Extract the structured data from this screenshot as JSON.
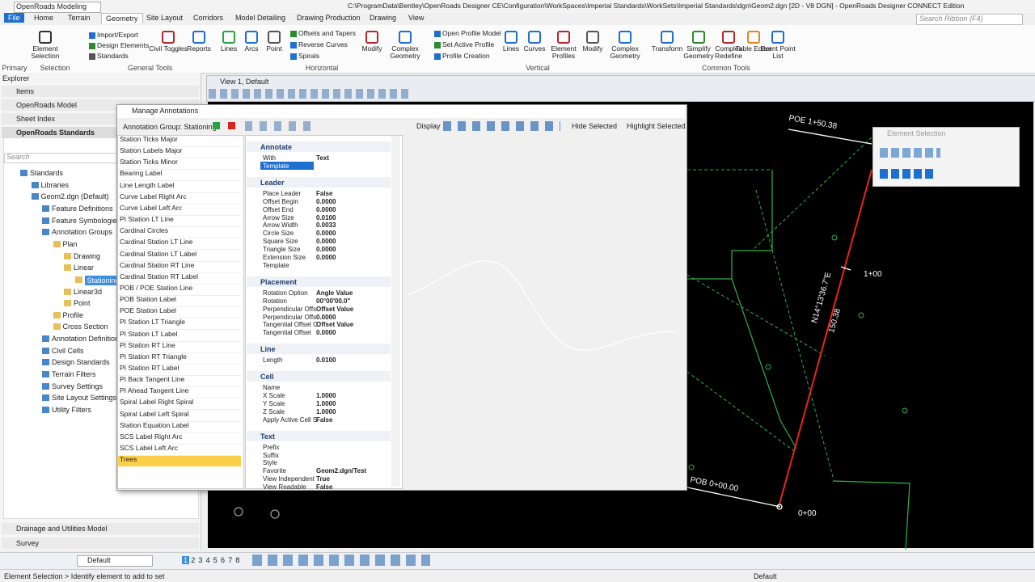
{
  "app": {
    "workflow": "OpenRoads Modeling",
    "title": "C:\\ProgramData\\Bentley\\OpenRoads Designer CE\\Configuration\\WorkSpaces\\Imperial Standards\\WorkSets\\Imperial Standards\\dgn\\Geom2.dgn [2D - V8 DGN] - OpenRoads Designer CONNECT Edition",
    "search": "Search Ribbon (F4)"
  },
  "tabs": [
    "File",
    "Home",
    "Terrain",
    "Geometry",
    "Site Layout",
    "Corridors",
    "Model Detailing",
    "Drawing Production",
    "Drawing",
    "View"
  ],
  "ribbon": {
    "groups": [
      "Primary",
      "Selection",
      "General Tools",
      "Horizontal",
      "Vertical",
      "Common Tools"
    ],
    "items": [
      "Element Selection",
      "Import/Export",
      "Design Elements",
      "Standards",
      "Civil Toggles",
      "Reports",
      "Lines",
      "Arcs",
      "Point",
      "Offsets and Tapers",
      "Reverse Curves",
      "Spirals",
      "Modify",
      "Complex Geometry",
      "Open Profile Model",
      "Set Active Profile",
      "Profile Creation",
      "Lines",
      "Curves",
      "Element Profiles",
      "Modify",
      "Complex Geometry",
      "Transform",
      "Simplify Geometry",
      "Complex Redefine",
      "Table Editor",
      "Event Point List"
    ]
  },
  "explorer": {
    "title": "Explorer",
    "sections": [
      "Items",
      "OpenRoads Model",
      "Sheet Index",
      "OpenRoads Standards"
    ],
    "search": "Search",
    "tree": [
      "Standards",
      "Libraries",
      "Geom2.dgn (Default)",
      "Feature Definitions",
      "Feature Symbologies",
      "Annotation Groups",
      "Plan",
      "Drawing",
      "Linear",
      "Stationing",
      "Linear3d",
      "Point",
      "Profile",
      "Cross Section",
      "Annotation Definitions",
      "Civil Cells",
      "Design Standards",
      "Terrain Filters",
      "Survey Settings",
      "Site Layout Settings",
      "Utility Filters"
    ],
    "bottom_sections": [
      "Drainage and Utilities Model",
      "Survey"
    ]
  },
  "view": {
    "title": "View 1, Default",
    "labels": [
      "POE 1+50.38",
      "1+00",
      "N14°13'36.7\"E",
      "150.38",
      "POB 0+00.00",
      "0+00"
    ]
  },
  "dialog": {
    "title": "Manage Annotations",
    "group": "Annotation Group: Stationing",
    "list": [
      "Station Ticks Major",
      "Station Labels Major",
      "Station Ticks Minor",
      "Bearing Label",
      "Line Length Label",
      "Curve Label Right Arc",
      "Curve Label Left Arc",
      "PI Station LT Line",
      "Cardinal Circles",
      "Cardinal Station LT Line",
      "Cardinal Station LT Label",
      "Cardinal Station RT Line",
      "Cardinal Station RT Label",
      "POB / POE Station Line",
      "POB Station Label",
      "POE Station Label",
      "PI Station LT Triangle",
      "PI Station LT Label",
      "PI Station RT Line",
      "PI Station RT Triangle",
      "PI Station RT Label",
      "PI Back Tangent Line",
      "PI Ahead Tangent Line",
      "Spiral Label Right Spiral",
      "Spiral Label Left Spiral",
      "Station Equation Label",
      "SCS Label Right Arc",
      "SCS Label Left Arc",
      "Trees"
    ],
    "toolbar": [
      "Display",
      "Hide Selected",
      "Highlight Selected"
    ],
    "sections": [
      {
        "title": "Annotate",
        "rows": [
          {
            "label": "With",
            "value": "Text"
          },
          {
            "label": "Template"
          }
        ]
      },
      {
        "title": "Leader",
        "rows": [
          {
            "label": "Place Leader",
            "value": "False"
          },
          {
            "label": "Offset Begin",
            "value": "0.0000"
          },
          {
            "label": "Offset End",
            "value": "0.0000"
          },
          {
            "label": "Arrow Size",
            "value": "0.0100"
          },
          {
            "label": "Arrow Width",
            "value": "0.0033"
          },
          {
            "label": "Circle Size",
            "value": "0.0000"
          },
          {
            "label": "Square Size",
            "value": "0.0000"
          },
          {
            "label": "Triangle Size",
            "value": "0.0000"
          },
          {
            "label": "Extension Size",
            "value": "0.0000"
          },
          {
            "label": "Template"
          }
        ]
      },
      {
        "title": "Placement",
        "rows": [
          {
            "label": "Rotation Option",
            "value": "Angle Value"
          },
          {
            "label": "Rotation",
            "value": "00°00'00.0\""
          },
          {
            "label": "Perpendicular Offs",
            "value": "Offset Value"
          },
          {
            "label": "Perpendicular Offs",
            "value": "0.0000"
          },
          {
            "label": "Tangential Offset C",
            "value": "Offset Value"
          },
          {
            "label": "Tangential Offset",
            "value": "0.0000"
          }
        ]
      },
      {
        "title": "Line",
        "rows": [
          {
            "label": "Length",
            "value": "0.0100"
          }
        ]
      },
      {
        "title": "Cell",
        "rows": [
          {
            "label": "Name"
          },
          {
            "label": "X Scale",
            "value": "1.0000"
          },
          {
            "label": "Y Scale",
            "value": "1.0000"
          },
          {
            "label": "Z Scale",
            "value": "1.0000"
          },
          {
            "label": "Apply Active Cell S",
            "value": "False"
          }
        ]
      },
      {
        "title": "Text",
        "rows": [
          {
            "label": "Prefix"
          },
          {
            "label": "Suffix"
          },
          {
            "label": "Style"
          },
          {
            "label": "Favorite",
            "value": "Geom2.dgn/Test"
          },
          {
            "label": "View Independent",
            "value": "True"
          },
          {
            "label": "View Readable",
            "value": "False"
          }
        ]
      }
    ]
  },
  "element_selection": {
    "title": "Element Selection"
  },
  "view_bar": {
    "level": "Default",
    "views": [
      "1",
      "2",
      "3",
      "4",
      "5",
      "6",
      "7",
      "8"
    ]
  },
  "status": {
    "prompt": "Element Selection > Identify element to add to set",
    "model": "Default"
  }
}
